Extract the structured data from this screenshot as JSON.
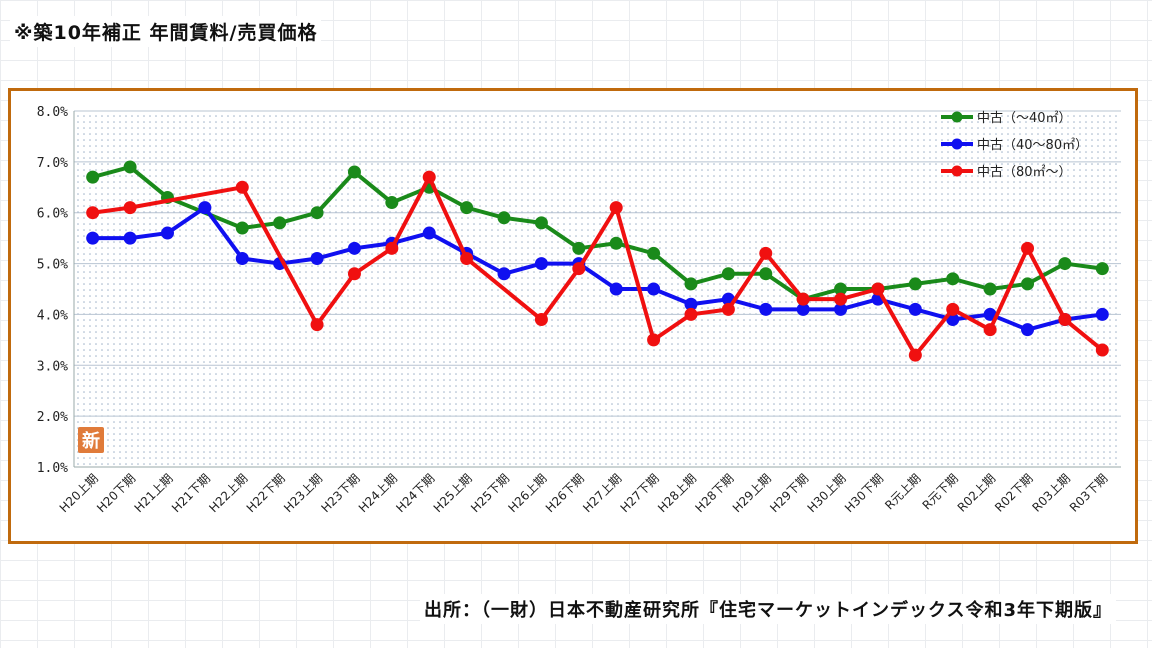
{
  "page": {
    "title": "※築10年補正 年間賃料/売買価格",
    "source": "出所：（一財）日本不動産研究所『住宅マーケットインデックス令和3年下期版』",
    "badge": "新"
  },
  "colors": {
    "frame": "#c06a0d",
    "series_1": "#1a8a1a",
    "series_2": "#1010f0",
    "series_3": "#f01010",
    "badge": "#e07b3a"
  },
  "chart_data": {
    "type": "line",
    "title": "",
    "xlabel": "",
    "ylabel": "",
    "ylim": [
      1.0,
      8.0
    ],
    "y_ticks": [
      "1.0%",
      "2.0%",
      "3.0%",
      "4.0%",
      "5.0%",
      "6.0%",
      "7.0%",
      "8.0%"
    ],
    "grid": true,
    "legend_position": "top-right",
    "categories": [
      "H20上期",
      "H20下期",
      "H21上期",
      "H21下期",
      "H22上期",
      "H22下期",
      "H23上期",
      "H23下期",
      "H24上期",
      "H24下期",
      "H25上期",
      "H25下期",
      "H26上期",
      "H26下期",
      "H27上期",
      "H27下期",
      "H28上期",
      "H28下期",
      "H29上期",
      "H29下期",
      "H30上期",
      "H30下期",
      "R元上期",
      "R元下期",
      "R02上期",
      "R02下期",
      "R03上期",
      "R03下期"
    ],
    "series": [
      {
        "name": "中古（～40㎡）",
        "color": "#1a8a1a",
        "values": [
          6.7,
          6.9,
          6.3,
          null,
          5.7,
          5.8,
          6.0,
          6.8,
          6.2,
          6.5,
          6.1,
          5.9,
          5.8,
          5.3,
          5.4,
          5.2,
          4.6,
          4.8,
          4.8,
          4.3,
          4.5,
          4.5,
          4.6,
          4.7,
          4.5,
          4.6,
          5.0,
          4.9
        ]
      },
      {
        "name": "中古（40～80㎡）",
        "color": "#1010f0",
        "values": [
          5.5,
          5.5,
          5.6,
          6.1,
          5.1,
          5.0,
          5.1,
          5.3,
          5.4,
          5.6,
          5.2,
          4.8,
          5.0,
          5.0,
          4.5,
          4.5,
          4.2,
          4.3,
          4.1,
          4.1,
          4.1,
          4.3,
          4.1,
          3.9,
          4.0,
          3.7,
          3.9,
          4.0
        ]
      },
      {
        "name": "中古（80㎡～）",
        "color": "#f01010",
        "values": [
          6.0,
          6.1,
          null,
          null,
          6.5,
          null,
          3.8,
          4.8,
          5.3,
          6.7,
          5.1,
          null,
          3.9,
          4.9,
          6.1,
          3.5,
          4.0,
          4.1,
          5.2,
          4.3,
          4.3,
          4.5,
          3.2,
          4.1,
          3.7,
          5.3,
          3.9,
          3.3
        ]
      }
    ]
  }
}
